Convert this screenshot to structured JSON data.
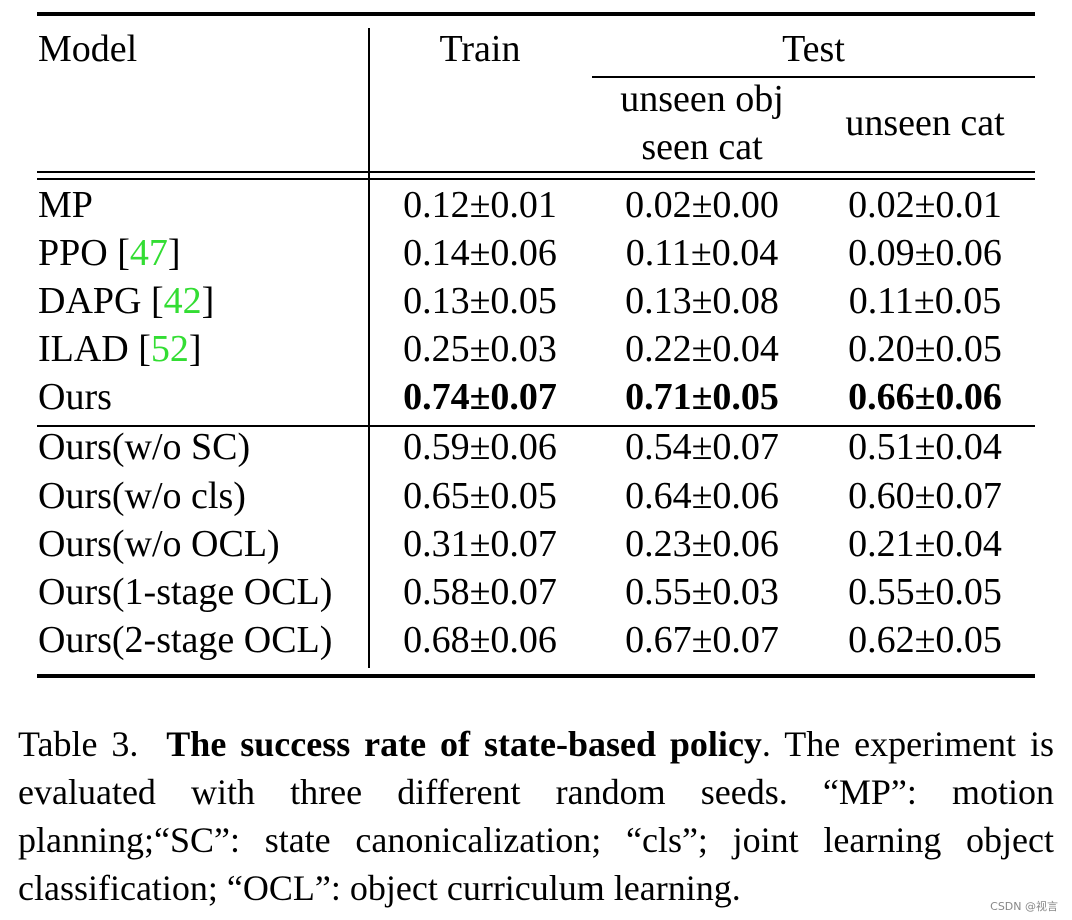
{
  "table": {
    "header": {
      "model": "Model",
      "train": "Train",
      "test": "Test",
      "test_sub1_line1": "unseen obj",
      "test_sub1_line2": "seen cat",
      "test_sub2": "unseen cat"
    },
    "rows": [
      {
        "model": "MP",
        "ref": "",
        "train": "0.12±0.01",
        "obj": "0.02±0.00",
        "cat": "0.02±0.01",
        "bold": false
      },
      {
        "model": "PPO [",
        "ref": "47",
        "close": "]",
        "train": "0.14±0.06",
        "obj": "0.11±0.04",
        "cat": "0.09±0.06",
        "bold": false
      },
      {
        "model": "DAPG [",
        "ref": "42",
        "close": "]",
        "train": "0.13±0.05",
        "obj": "0.13±0.08",
        "cat": "0.11±0.05",
        "bold": false
      },
      {
        "model": "ILAD [",
        "ref": "52",
        "close": "]",
        "train": "0.25±0.03",
        "obj": "0.22±0.04",
        "cat": "0.20±0.05",
        "bold": false
      },
      {
        "model": "Ours",
        "ref": "",
        "train": "0.74±0.07",
        "obj": "0.71±0.05",
        "cat": "0.66±0.06",
        "bold": true
      },
      {
        "model": "Ours(w/o SC)",
        "ref": "",
        "train": "0.59±0.06",
        "obj": "0.54±0.07",
        "cat": "0.51±0.04",
        "bold": false
      },
      {
        "model": "Ours(w/o cls)",
        "ref": "",
        "train": "0.65±0.05",
        "obj": "0.64±0.06",
        "cat": "0.60±0.07",
        "bold": false
      },
      {
        "model": "Ours(w/o OCL)",
        "ref": "",
        "train": "0.31±0.07",
        "obj": "0.23±0.06",
        "cat": "0.21±0.04",
        "bold": false
      },
      {
        "model": "Ours(1-stage OCL)",
        "ref": "",
        "train": "0.58±0.07",
        "obj": "0.55±0.03",
        "cat": "0.55±0.05",
        "bold": false
      },
      {
        "model": "Ours(2-stage OCL)",
        "ref": "",
        "train": "0.68±0.06",
        "obj": "0.67±0.07",
        "cat": "0.62±0.05",
        "bold": false
      }
    ]
  },
  "caption": {
    "label": "Table 3.",
    "title": "The success rate of state-based policy",
    "text": ". The experiment is evaluated with three different random seeds. “MP”: motion planning;“SC”: state canonicalization; “cls”; joint learning object classification; “OCL”: object curriculum learning."
  },
  "watermark": "CSDN @视言",
  "colors": {
    "ref_link": "#33dd33"
  }
}
